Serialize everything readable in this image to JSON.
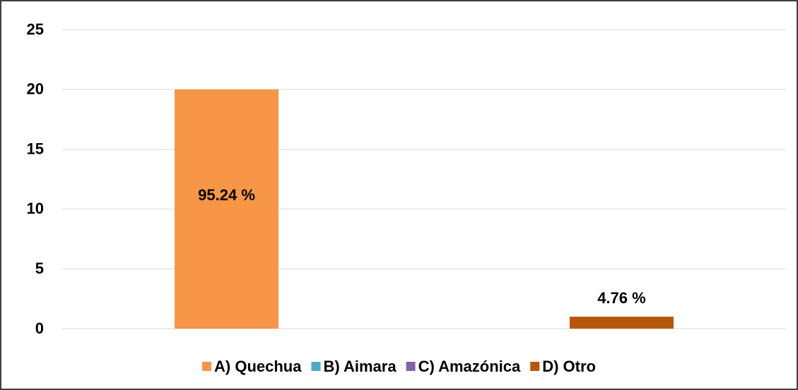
{
  "chart_data": {
    "type": "bar",
    "series": [
      {
        "name": "A) Quechua",
        "color": "#f79646",
        "values": [
          20
        ],
        "label": "95.24 %"
      },
      {
        "name": "B) Aimara",
        "color": "#4bacc6",
        "values": [
          0
        ]
      },
      {
        "name": "C) Amazónica",
        "color": "#8064a2",
        "values": [
          0
        ]
      },
      {
        "name": "D) Otro",
        "color": "#b65708",
        "values": [
          1
        ],
        "label": "4.76 %"
      }
    ],
    "ylim": [
      0,
      25
    ],
    "yticks": [
      0,
      5,
      10,
      15,
      20,
      25
    ],
    "grid": true,
    "legend": "bottom"
  }
}
